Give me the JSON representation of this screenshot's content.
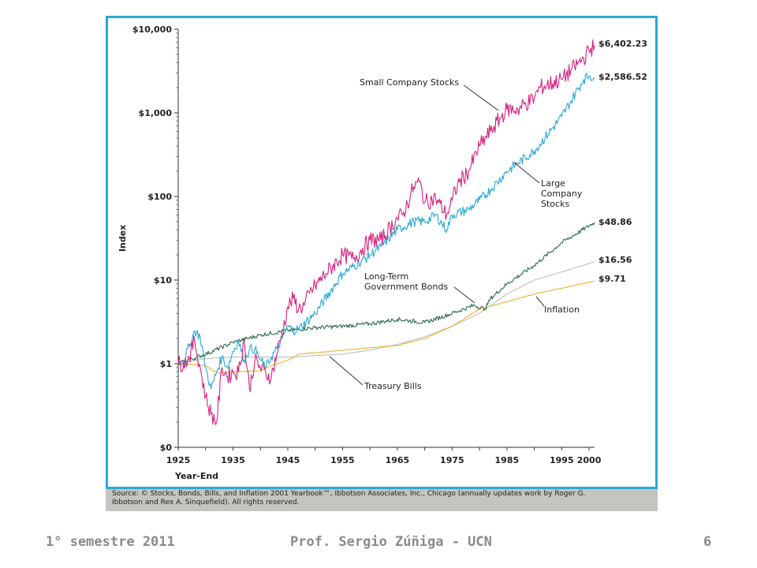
{
  "chart_data": {
    "type": "line",
    "title": "",
    "xlabel": "Year-End",
    "ylabel": "Index",
    "y_scale": "log",
    "xlim": [
      1925,
      2001
    ],
    "ylim": [
      0.1,
      10000
    ],
    "x_ticks": [
      1925,
      1935,
      1945,
      1955,
      1965,
      1975,
      1985,
      1995,
      2000
    ],
    "x_tick_labels": [
      "1925",
      "1935",
      "1945",
      "1955",
      "1965",
      "1975",
      "1985",
      "1995",
      "2000"
    ],
    "y_ticks": [
      0.1,
      1,
      10,
      100,
      1000,
      10000
    ],
    "y_tick_labels": [
      "$0",
      "$1",
      "$10",
      "$100",
      "$1,000",
      "$10,000"
    ],
    "grid": false,
    "series": [
      {
        "name": "Small Company Stocks",
        "color": "#d6217f",
        "end_label": "$6,402.23",
        "x": [
          1925,
          1926,
          1927,
          1928,
          1929,
          1930,
          1931,
          1932,
          1933,
          1934,
          1935,
          1936,
          1937,
          1938,
          1939,
          1940,
          1941,
          1942,
          1943,
          1944,
          1945,
          1946,
          1947,
          1948,
          1949,
          1950,
          1952,
          1955,
          1957,
          1960,
          1962,
          1965,
          1966,
          1968,
          1969,
          1970,
          1972,
          1974,
          1975,
          1976,
          1978,
          1980,
          1982,
          1985,
          1987,
          1990,
          1991,
          1995,
          1999,
          2000,
          2001
        ],
        "y": [
          1.0,
          1.0,
          1.2,
          1.9,
          0.9,
          0.4,
          0.25,
          0.2,
          0.9,
          0.7,
          0.8,
          0.8,
          1.9,
          0.5,
          1.1,
          0.9,
          0.75,
          0.7,
          1.3,
          2.3,
          4.8,
          6.0,
          4.5,
          5.0,
          7.0,
          8.5,
          12,
          20,
          18,
          30,
          30,
          55,
          60,
          130,
          150,
          85,
          95,
          60,
          90,
          140,
          200,
          400,
          600,
          1100,
          1100,
          1500,
          2000,
          2500,
          4500,
          5500,
          6402.23
        ]
      },
      {
        "name": "Large Company Stocks",
        "color": "#2aa9d6",
        "end_label": "$2,586.52",
        "x": [
          1925,
          1926,
          1927,
          1928,
          1929,
          1930,
          1931,
          1932,
          1933,
          1934,
          1935,
          1936,
          1937,
          1938,
          1939,
          1940,
          1941,
          1942,
          1943,
          1944,
          1945,
          1946,
          1947,
          1950,
          1955,
          1958,
          1960,
          1962,
          1965,
          1968,
          1970,
          1972,
          1974,
          1975,
          1978,
          1980,
          1982,
          1985,
          1987,
          1990,
          1995,
          1997,
          1999,
          2000,
          2001
        ],
        "y": [
          1.0,
          1.1,
          1.6,
          2.5,
          2.1,
          0.9,
          0.5,
          0.8,
          1.2,
          0.9,
          1.4,
          1.9,
          1.1,
          1.5,
          1.5,
          1.1,
          0.9,
          1.2,
          1.5,
          2.0,
          2.8,
          2.5,
          2.6,
          4.0,
          12,
          16,
          20,
          25,
          40,
          50,
          50,
          60,
          40,
          60,
          70,
          90,
          120,
          200,
          250,
          350,
          900,
          1500,
          2500,
          2800,
          2586.52
        ]
      },
      {
        "name": "Long-Term Government Bonds",
        "color": "#2e6b4e",
        "end_label": "$48.86",
        "x": [
          1925,
          1930,
          1935,
          1940,
          1945,
          1950,
          1955,
          1960,
          1965,
          1970,
          1975,
          1979,
          1981,
          1982,
          1985,
          1990,
          1995,
          2001
        ],
        "y": [
          1.0,
          1.3,
          1.8,
          2.2,
          2.5,
          2.7,
          2.8,
          3.0,
          3.4,
          3.1,
          4.0,
          5.0,
          4.5,
          6.0,
          9.0,
          15,
          28,
          48.86
        ]
      },
      {
        "name": "Treasury Bills",
        "color": "#bfbfbf",
        "end_label": "$16.56",
        "x": [
          1925,
          1930,
          1935,
          1940,
          1945,
          1950,
          1955,
          1960,
          1965,
          1970,
          1975,
          1980,
          1985,
          1990,
          1995,
          2001
        ],
        "y": [
          1.0,
          1.15,
          1.2,
          1.2,
          1.2,
          1.25,
          1.3,
          1.45,
          1.7,
          2.1,
          2.8,
          4.0,
          6.8,
          10,
          12.5,
          16.56
        ]
      },
      {
        "name": "Inflation",
        "color": "#f2b233",
        "end_label": "$9.71",
        "x": [
          1925,
          1930,
          1932,
          1935,
          1940,
          1942,
          1945,
          1947,
          1950,
          1955,
          1960,
          1965,
          1970,
          1975,
          1980,
          1985,
          1990,
          1995,
          2001
        ],
        "y": [
          1.0,
          0.95,
          0.78,
          0.8,
          0.82,
          0.95,
          1.1,
          1.3,
          1.35,
          1.45,
          1.55,
          1.65,
          2.0,
          2.8,
          4.5,
          5.5,
          6.8,
          8.0,
          9.71
        ]
      }
    ],
    "annotations": [
      "Small Company Stocks",
      "Large Company Stocks",
      "Long-Term Government Bonds",
      "Inflation",
      "Treasury Bills"
    ]
  },
  "figure": {
    "annotation_small": "Small Company Stocks",
    "annotation_large_1": "Large",
    "annotation_large_2": "Company",
    "annotation_large_3": "Stocks",
    "annotation_bonds_1": "Long-Term",
    "annotation_bonds_2": "Government Bonds",
    "annotation_inflation": "Inflation",
    "annotation_tbills": "Treasury Bills",
    "source_line_1": "Source: © Stocks, Bonds, Bills, and Inflation 2001 Yearbook™, Ibbotson Associates, Inc., Chicago (annually updates work by Roger G.",
    "source_line_2": "Ibbotson and Rex A. Sinquefield). All rights reserved."
  },
  "footer": {
    "left": "1° semestre 2011",
    "center": "Prof. Sergio Zúñiga - UCN",
    "page": "6"
  }
}
